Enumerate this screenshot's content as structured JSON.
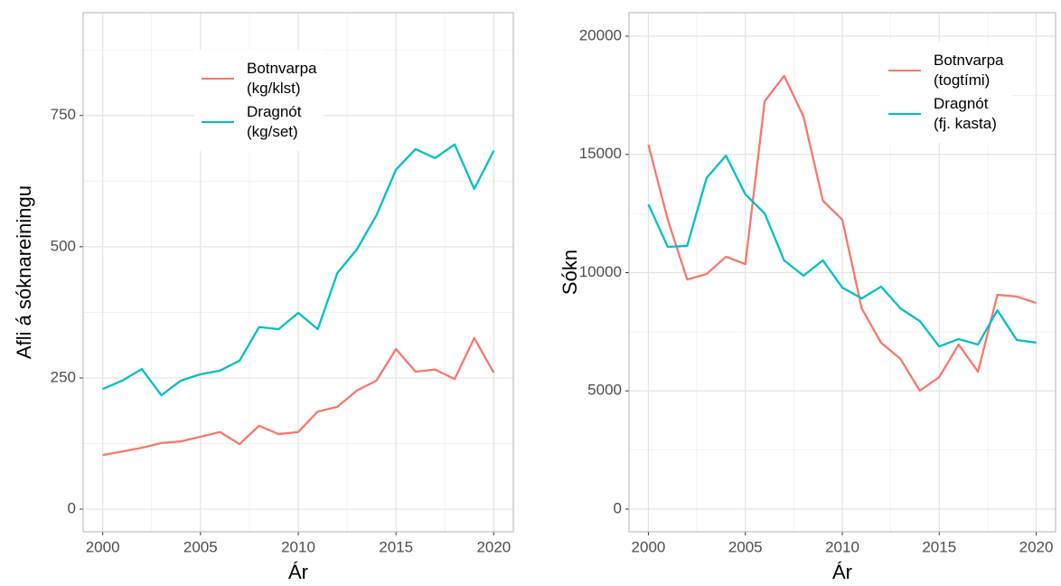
{
  "chart_data": [
    {
      "type": "line",
      "ylabel": "Afli á sóknareiningu",
      "xlabel": "Ár",
      "x": [
        2000,
        2001,
        2002,
        2003,
        2004,
        2005,
        2006,
        2007,
        2008,
        2009,
        2010,
        2011,
        2012,
        2013,
        2014,
        2015,
        2016,
        2017,
        2018,
        2019,
        2020
      ],
      "series": [
        {
          "name": "Botnvarpa\n (kg/klst)",
          "color": "#F8766D",
          "values": [
            103,
            110,
            117,
            126,
            129,
            138,
            147,
            124,
            159,
            143,
            147,
            186,
            195,
            226,
            245,
            305,
            262,
            266,
            248,
            326,
            260
          ]
        },
        {
          "name": "Dragnót\n (kg/set)",
          "color": "#00BFC4",
          "values": [
            229,
            245,
            267,
            217,
            245,
            257,
            264,
            283,
            347,
            343,
            374,
            343,
            450,
            495,
            560,
            647,
            686,
            669,
            695,
            610,
            683
          ]
        }
      ],
      "xlim": [
        1999,
        2021
      ],
      "xticks": [
        2000,
        2005,
        2010,
        2015,
        2020
      ],
      "ylim": [
        -43,
        946
      ],
      "yticks": [
        0,
        250,
        500,
        750
      ],
      "grid": true,
      "legend": "top"
    },
    {
      "type": "line",
      "ylabel": "Sókn",
      "xlabel": "Ár",
      "x": [
        2000,
        2001,
        2002,
        2003,
        2004,
        2005,
        2006,
        2007,
        2008,
        2009,
        2010,
        2011,
        2012,
        2013,
        2014,
        2015,
        2016,
        2017,
        2018,
        2019,
        2020
      ],
      "series": [
        {
          "name": "Botnvarpa\n(togtími)",
          "color": "#F8766D",
          "values": [
            15410,
            12240,
            9710,
            9940,
            10670,
            10360,
            17250,
            18320,
            16600,
            13040,
            12240,
            8490,
            7040,
            6350,
            5010,
            5580,
            6960,
            5810,
            9060,
            8990,
            8720
          ]
        },
        {
          "name": "Dragnót\n (fj. kasta)",
          "color": "#00BFC4",
          "values": [
            12890,
            11090,
            11130,
            14000,
            14950,
            13310,
            12500,
            10520,
            9870,
            10520,
            9370,
            8910,
            9410,
            8490,
            7950,
            6880,
            7190,
            6960,
            8410,
            7150,
            7040
          ]
        }
      ],
      "xlim": [
        1999,
        2021
      ],
      "xticks": [
        2000,
        2005,
        2010,
        2015,
        2020
      ],
      "ylim": [
        -956,
        20994
      ],
      "yticks": [
        0,
        5000,
        10000,
        15000,
        20000
      ],
      "grid": true,
      "legend": "top-right"
    }
  ]
}
